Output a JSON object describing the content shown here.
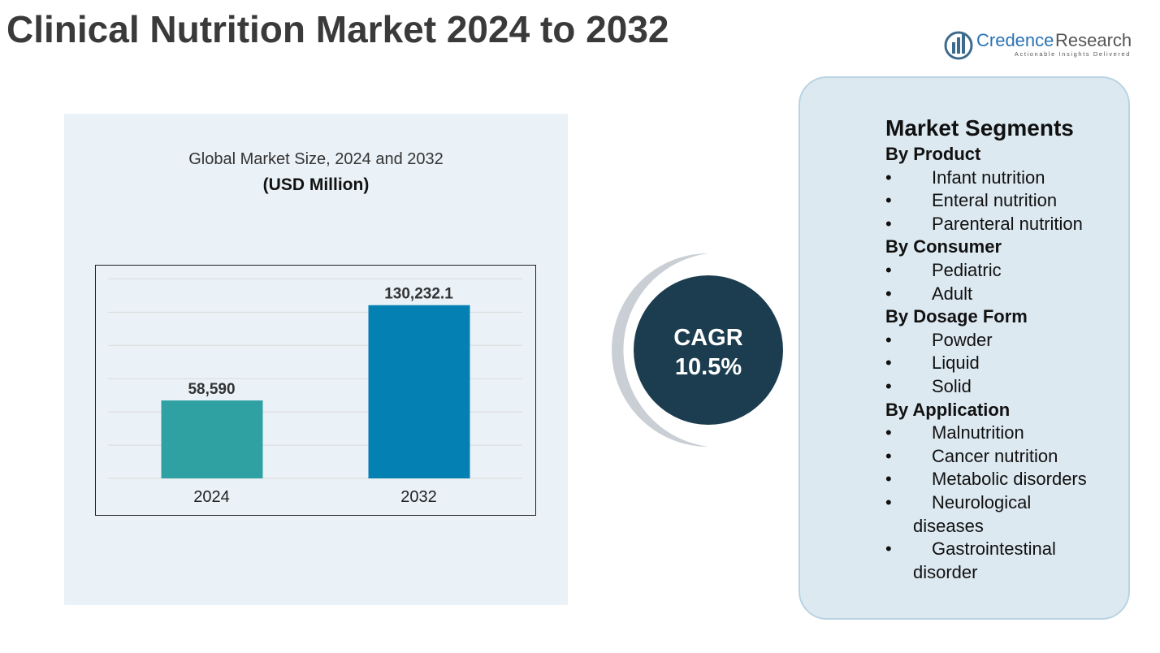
{
  "title": "Clinical Nutrition Market 2024 to 2032",
  "logo": {
    "name_first": "Credence",
    "name_second": "Research",
    "tagline": "Actionable Insights Delivered"
  },
  "chart_data": {
    "type": "bar",
    "title": "Global Market Size, 2024 and 2032",
    "subtitle": "(USD Million)",
    "categories": [
      "2024",
      "2032"
    ],
    "values": [
      58590,
      130232.1
    ],
    "value_labels": [
      "58,590",
      "130,232.1"
    ],
    "colors": [
      "#2fa1a3",
      "#0580b3"
    ],
    "ylim": [
      0,
      160000
    ],
    "yticks": [
      0,
      25000,
      50000,
      75000,
      100000,
      125000,
      150000
    ],
    "grid": true
  },
  "cagr": {
    "label": "CAGR",
    "value": "10.5%"
  },
  "segments": {
    "title": "Market Segments",
    "groups": [
      {
        "name": "By Product",
        "items": [
          "Infant nutrition",
          "Enteral nutrition",
          "Parenteral nutrition"
        ]
      },
      {
        "name": "By Consumer",
        "items": [
          "Pediatric",
          "Adult"
        ]
      },
      {
        "name": "By Dosage Form",
        "items": [
          "Powder",
          "Liquid",
          "Solid"
        ]
      },
      {
        "name": "By Application",
        "items": [
          "Malnutrition",
          "Cancer nutrition",
          "Metabolic disorders",
          "Neurological diseases",
          "Gastrointestinal disorder"
        ]
      }
    ]
  }
}
